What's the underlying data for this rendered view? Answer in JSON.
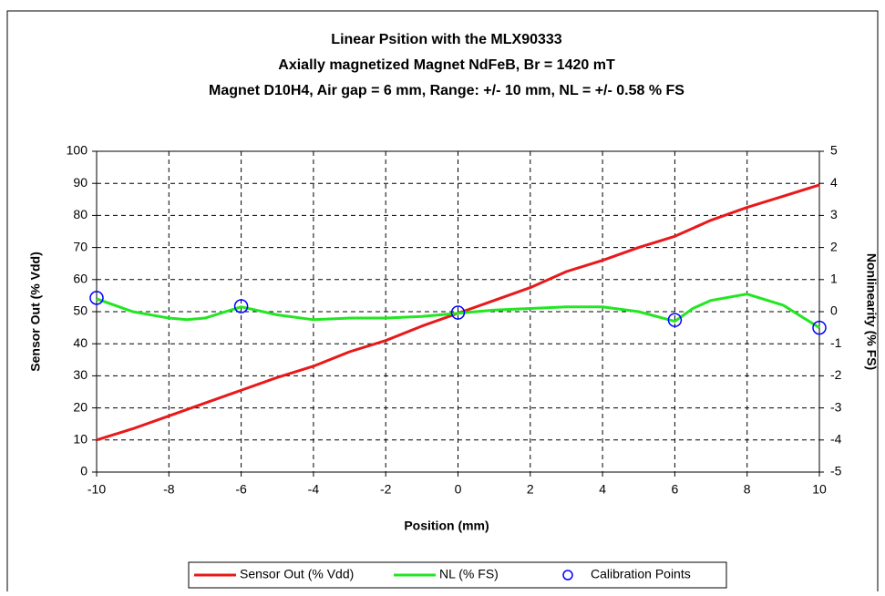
{
  "chart_data": {
    "type": "line",
    "title": [
      "Linear Psition with the MLX90333",
      "Axially magnetized Magnet NdFeB, Br = 1420 mT",
      "Magnet D10H4, Air gap = 6 mm, Range: +/- 10 mm, NL = +/- 0.58 % FS"
    ],
    "xlabel": "Position (mm)",
    "ylabel": "Sensor Out (% Vdd)",
    "y2label": "Nonlinearity (% FS)",
    "xlim": [
      -10,
      10
    ],
    "xticks": [
      -10,
      -8,
      -6,
      -4,
      -2,
      0,
      2,
      4,
      6,
      8,
      10
    ],
    "ylim": [
      0,
      100
    ],
    "yticks": [
      0,
      10,
      20,
      30,
      40,
      50,
      60,
      70,
      80,
      90,
      100
    ],
    "y2lim": [
      -5,
      5
    ],
    "y2ticks": [
      -5,
      -4,
      -3,
      -2,
      -1,
      0,
      1,
      2,
      3,
      4,
      5
    ],
    "grid": true,
    "legend": "bottom",
    "series": [
      {
        "name": "Sensor Out (% Vdd)",
        "color": "#e8191a",
        "axis": "y",
        "x": [
          -10,
          -9,
          -8,
          -7,
          -6,
          -5,
          -4,
          -3,
          -2,
          -1,
          0,
          1,
          2,
          3,
          4,
          5,
          6,
          7,
          8,
          9,
          10
        ],
        "values": [
          10,
          13.5,
          17.5,
          21.5,
          25.5,
          29.5,
          33,
          37.5,
          41,
          45.5,
          49.5,
          53.5,
          57.5,
          62.5,
          66,
          70,
          73.5,
          78.5,
          82.5,
          86,
          89.5
        ]
      },
      {
        "name": "NL (% FS)",
        "color": "#22e622",
        "axis": "y2",
        "x": [
          -10,
          -9,
          -8,
          -7.5,
          -7,
          -6,
          -5,
          -4,
          -3,
          -2,
          -1,
          0,
          1,
          2,
          3,
          4,
          5,
          6,
          6.5,
          7,
          8,
          9,
          10
        ],
        "values": [
          0.4,
          0.0,
          -0.2,
          -0.25,
          -0.2,
          0.15,
          -0.1,
          -0.25,
          -0.2,
          -0.2,
          -0.15,
          -0.05,
          0.05,
          0.1,
          0.15,
          0.15,
          0.0,
          -0.3,
          0.1,
          0.35,
          0.55,
          0.2,
          -0.5
        ]
      },
      {
        "name": "Calibration Points",
        "type": "scatter",
        "color": "#0000ff",
        "axis": "y2",
        "x": [
          -10,
          -6,
          0,
          6,
          10
        ],
        "values": [
          0.43,
          0.17,
          -0.03,
          -0.26,
          -0.5
        ]
      }
    ]
  }
}
